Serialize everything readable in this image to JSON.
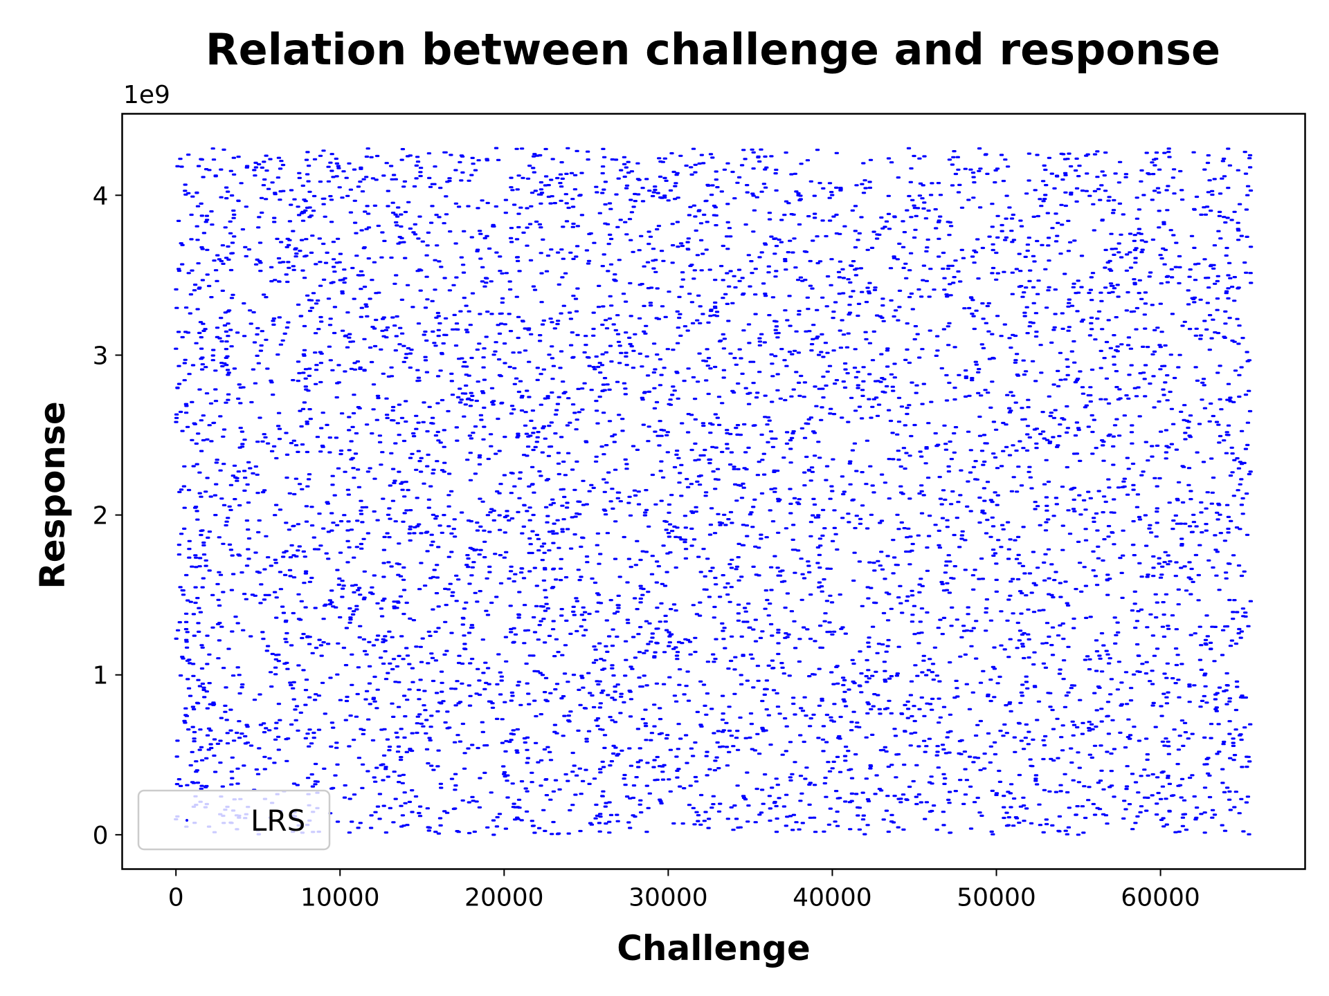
{
  "chart_data": {
    "type": "scatter",
    "title": "Relation between challenge and response",
    "xlabel": "Challenge",
    "ylabel": "Response",
    "y_offset_label": "1e9",
    "xlim": [
      -3277,
      68813
    ],
    "ylim": [
      -214748364,
      4509715660
    ],
    "xticks": [
      0,
      10000,
      20000,
      30000,
      40000,
      50000,
      60000
    ],
    "xtick_labels": [
      "0",
      "10000",
      "20000",
      "30000",
      "40000",
      "50000",
      "60000"
    ],
    "yticks": [
      0,
      1,
      2,
      3,
      4
    ],
    "ytick_labels": [
      "0",
      "1",
      "2",
      "3",
      "4"
    ],
    "y_scale_factor": 1000000000,
    "grid": false,
    "legend_position": "lower-left",
    "series": [
      {
        "name": "LRS",
        "color": "#0000ff",
        "marker": "dot",
        "distribution": "uniform-random",
        "x_range": [
          0,
          65535
        ],
        "y_range": [
          0,
          4294967295
        ],
        "point_count": 65536
      }
    ]
  }
}
